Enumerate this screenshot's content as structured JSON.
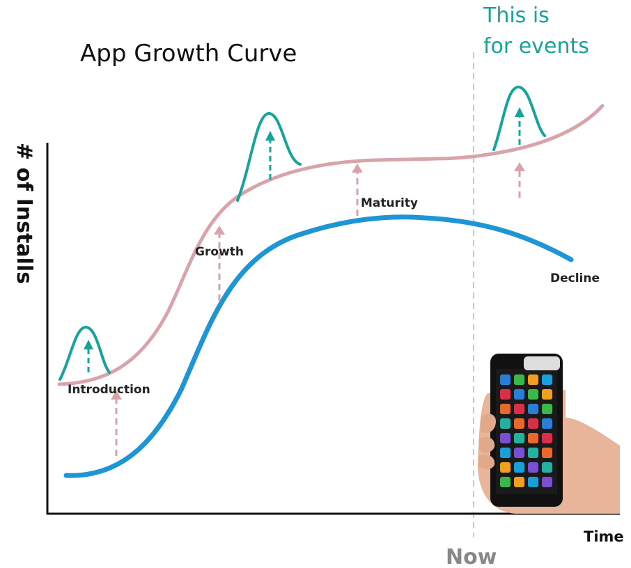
{
  "title": "App Growth Curve",
  "annotation": [
    "This is",
    "for events"
  ],
  "y_axis_label": "# of Installs",
  "x_axis_label": "Time",
  "now_label": "Now",
  "stages": [
    "Introduction",
    "Growth",
    "Maturity",
    "Decline"
  ]
}
